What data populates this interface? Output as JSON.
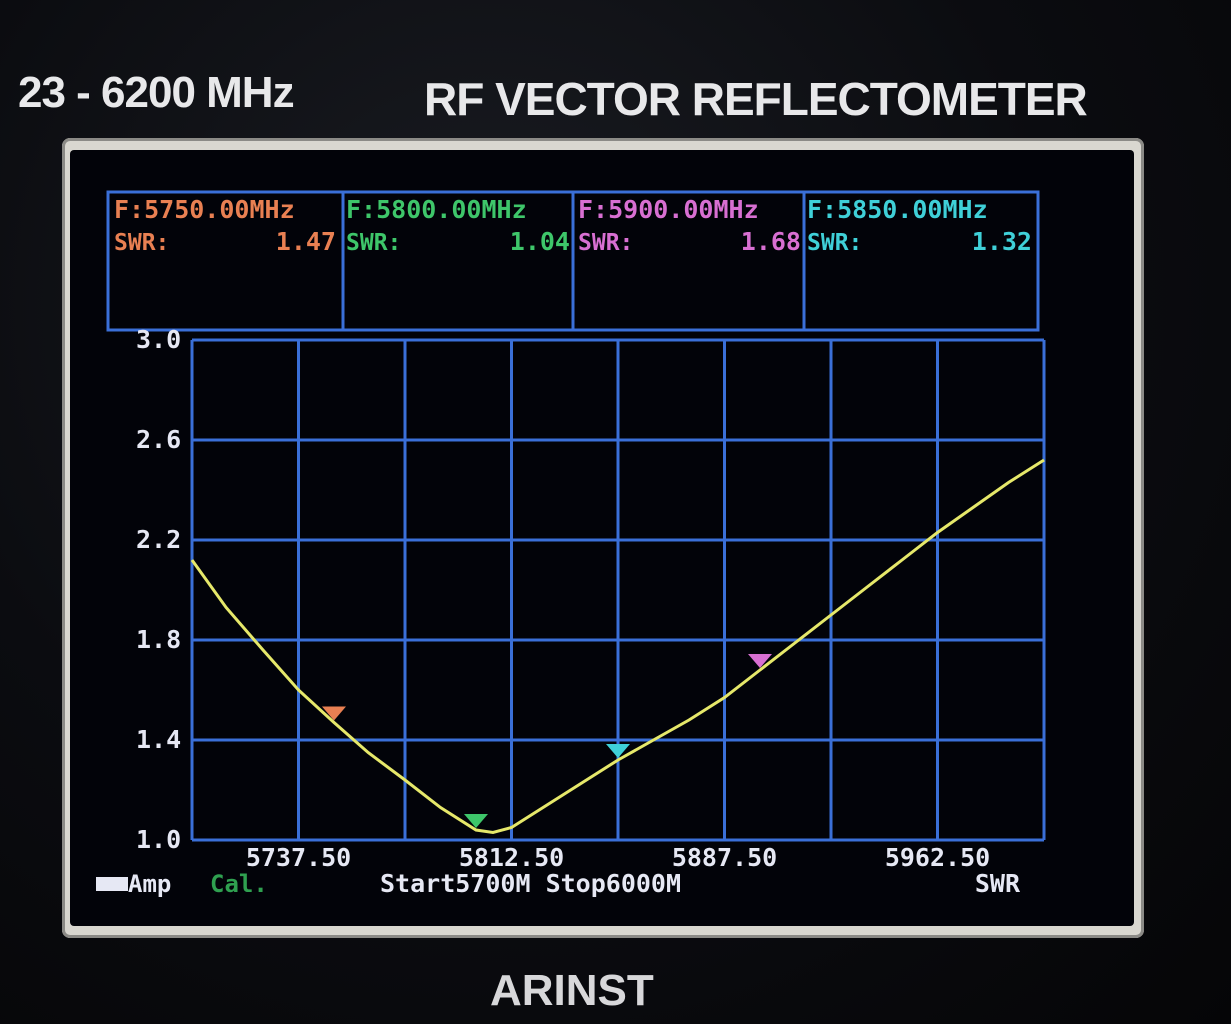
{
  "device": {
    "range_label": "23 - 6200 MHz",
    "title": "RF VECTOR REFLECTOMETER",
    "brand": "ARINST"
  },
  "markers": [
    {
      "freq_label": "F:5750.00MHz",
      "swr_label": "SWR:",
      "swr_value": "1.47",
      "color": "#e98052",
      "freq": 5750,
      "swr": 1.47
    },
    {
      "freq_label": "F:5800.00MHz",
      "swr_label": "SWR:",
      "swr_value": "1.04",
      "color": "#3ec66a",
      "freq": 5800,
      "swr": 1.04
    },
    {
      "freq_label": "F:5900.00MHz",
      "swr_label": "SWR:",
      "swr_value": "1.68",
      "color": "#d86fd2",
      "freq": 5900,
      "swr": 1.68
    },
    {
      "freq_label": "F:5850.00MHz",
      "swr_label": "SWR:",
      "swr_value": "1.32",
      "color": "#3fd0d8",
      "freq": 5850,
      "swr": 1.32
    }
  ],
  "status": {
    "left_label": "Amp",
    "cal_label": "Cal.",
    "start_stop": "Start5700M Stop6000M",
    "mode": "SWR"
  },
  "colors": {
    "grid": "#3a6fd8",
    "trace": "#e6e86a",
    "text": "#e6e8f4",
    "cal": "#2fa050"
  },
  "chart_data": {
    "type": "line",
    "title": "",
    "xlabel": "",
    "ylabel": "",
    "xlim": [
      5700,
      6000
    ],
    "ylim": [
      1.0,
      3.0
    ],
    "yticks": [
      "3.0",
      "2.6",
      "2.2",
      "1.8",
      "1.4",
      "1.0"
    ],
    "xticks": [
      "5737.50",
      "5812.50",
      "5887.50",
      "5962.50"
    ],
    "series": [
      {
        "x": [
          5700,
          5712,
          5725,
          5737.5,
          5750,
          5762,
          5775,
          5787.5,
          5800,
          5806,
          5812.5,
          5825,
          5837.5,
          5850,
          5862.5,
          5875,
          5887.5,
          5900,
          5912.5,
          5925,
          5937.5,
          5950,
          5962.5,
          5975,
          5987.5,
          6000
        ],
        "y": [
          2.12,
          1.93,
          1.76,
          1.6,
          1.47,
          1.35,
          1.24,
          1.13,
          1.04,
          1.03,
          1.05,
          1.14,
          1.23,
          1.32,
          1.4,
          1.48,
          1.57,
          1.68,
          1.79,
          1.9,
          2.01,
          2.12,
          2.23,
          2.33,
          2.43,
          2.52
        ]
      }
    ]
  }
}
